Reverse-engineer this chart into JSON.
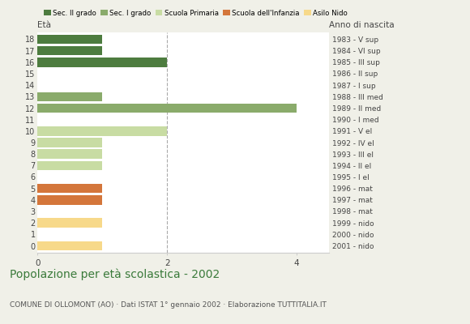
{
  "ages": [
    18,
    17,
    16,
    15,
    14,
    13,
    12,
    11,
    10,
    9,
    8,
    7,
    6,
    5,
    4,
    3,
    2,
    1,
    0
  ],
  "right_labels": [
    "1983 - V sup",
    "1984 - VI sup",
    "1985 - III sup",
    "1986 - II sup",
    "1987 - I sup",
    "1988 - III med",
    "1989 - II med",
    "1990 - I med",
    "1991 - V el",
    "1992 - IV el",
    "1993 - III el",
    "1994 - II el",
    "1995 - I el",
    "1996 - mat",
    "1997 - mat",
    "1998 - mat",
    "1999 - nido",
    "2000 - nido",
    "2001 - nido"
  ],
  "values": [
    1,
    1,
    2,
    0,
    0,
    1,
    4,
    0,
    2,
    1,
    1,
    1,
    0,
    1,
    1,
    0,
    1,
    0,
    1
  ],
  "categories": {
    "Sec. II grado": {
      "ages": [
        18,
        17,
        16,
        15,
        14
      ],
      "color": "#4d7c3f"
    },
    "Sec. I grado": {
      "ages": [
        13,
        12,
        11
      ],
      "color": "#8aab6b"
    },
    "Scuola Primaria": {
      "ages": [
        10,
        9,
        8,
        7,
        6
      ],
      "color": "#c8dca3"
    },
    "Scuola dell'Infanzia": {
      "ages": [
        5,
        4,
        3
      ],
      "color": "#d4763b"
    },
    "Asilo Nido": {
      "ages": [
        2,
        1,
        0
      ],
      "color": "#f7d98a"
    }
  },
  "title": "Popolazione per età scolastica - 2002",
  "subtitle": "COMUNE DI OLLOMONT (AO) · Dati ISTAT 1° gennaio 2002 · Elaborazione TUTTITALIA.IT",
  "xlabel_left": "Età",
  "xlabel_right": "Anno di nascita",
  "xlim": [
    0,
    4.5
  ],
  "dashed_line_x": 2,
  "plot_bg": "#ffffff",
  "fig_bg": "#f0f0e8",
  "legend_order": [
    "Sec. II grado",
    "Sec. I grado",
    "Scuola Primaria",
    "Scuola dell'Infanzia",
    "Asilo Nido"
  ],
  "colors": {
    "Sec. II grado": "#4d7c3f",
    "Sec. I grado": "#8aab6b",
    "Scuola Primaria": "#c8dca3",
    "Scuola dell'Infanzia": "#d4763b",
    "Asilo Nido": "#f7d98a"
  },
  "title_color": "#3a7a3a",
  "subtitle_color": "#555555"
}
